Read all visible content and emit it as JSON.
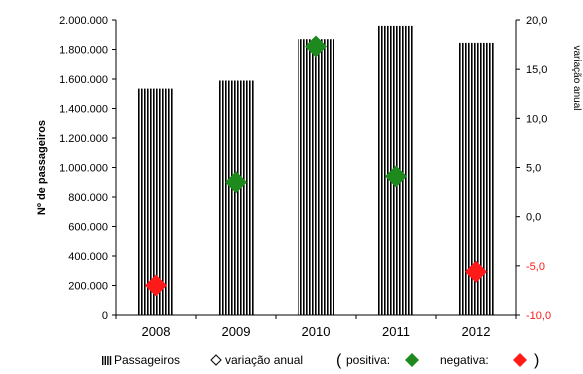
{
  "chart_data": {
    "type": "bar",
    "categories": [
      "2008",
      "2009",
      "2010",
      "2011",
      "2012"
    ],
    "series": [
      {
        "name": "Passageiros",
        "axis": "left",
        "type": "bar",
        "pattern": "vertical-stripes",
        "values": [
          1535000,
          1590000,
          1870000,
          1960000,
          1845000
        ]
      },
      {
        "name": "variação anual",
        "axis": "right",
        "type": "scatter",
        "marker": "diamond",
        "values": [
          -7.0,
          3.5,
          17.3,
          4.1,
          -5.6
        ]
      }
    ],
    "ylabel_left": "Nº de passageiros",
    "ylabel_right": "variação anual",
    "ylim_left": [
      0,
      2000000
    ],
    "ylim_right": [
      -10,
      20
    ],
    "yticks_left": [
      "0",
      "200.000",
      "400.000",
      "600.000",
      "800.000",
      "1.000.000",
      "1.200.000",
      "1.400.000",
      "1.600.000",
      "1.800.000",
      "2.000.000"
    ],
    "yticks_right": [
      "-10,0",
      "-5,0",
      "0,0",
      "5,0",
      "10,0",
      "15,0",
      "20,0"
    ],
    "grid": false,
    "legend": {
      "placement": "bottom",
      "passageiros": "Passageiros",
      "variacao": "variação anual",
      "open": "(",
      "positiva": "positiva:",
      "negativa": "negativa:",
      "close": ")"
    },
    "colors": {
      "positiva": "#1e8a1e",
      "negativa": "#ff1a1a",
      "bar_stripe": "#000000",
      "axis": "#000000"
    }
  }
}
